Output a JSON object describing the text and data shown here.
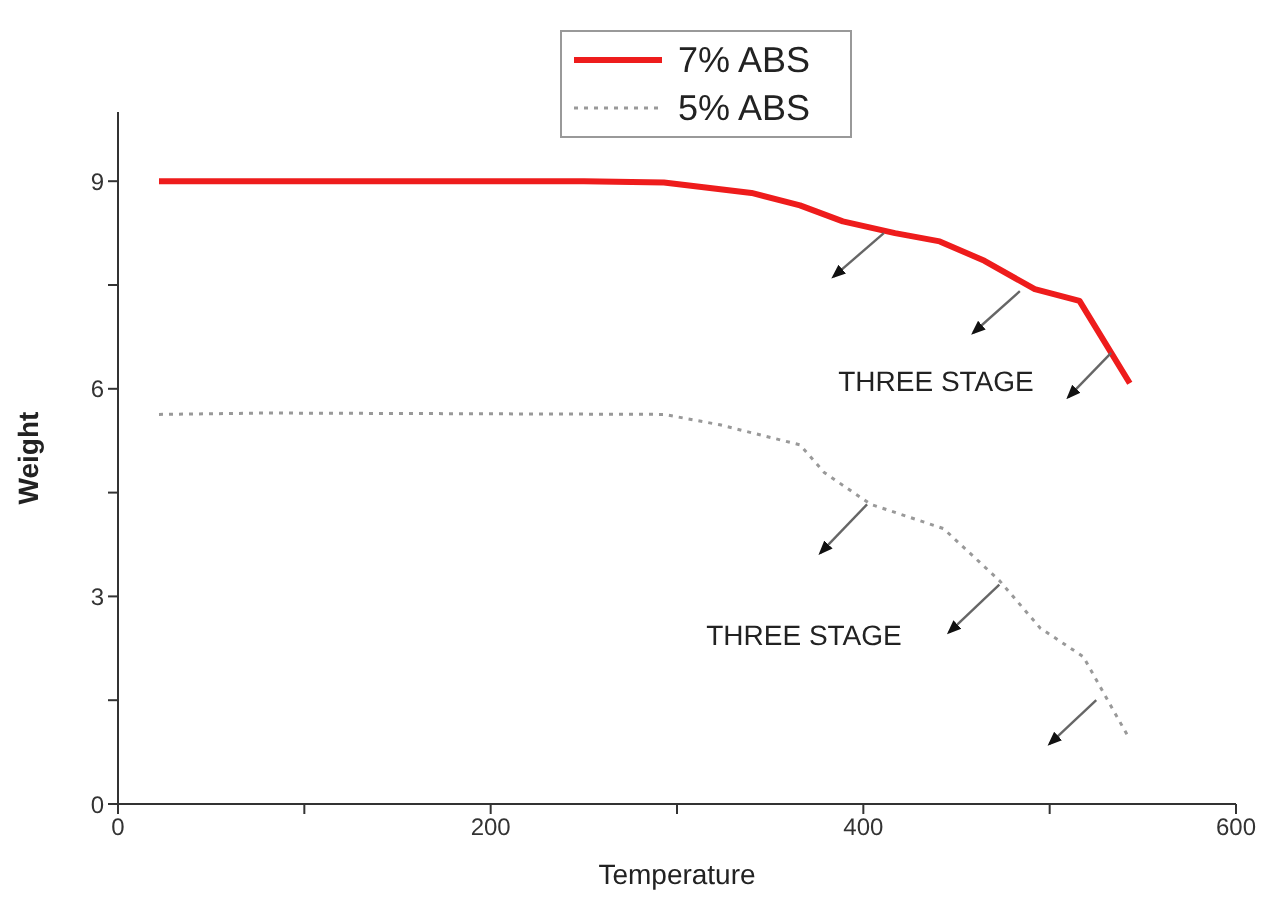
{
  "chart_data": {
    "type": "line",
    "xlabel": "Temperature",
    "ylabel": "Weight",
    "xlim": [
      0,
      600
    ],
    "xticks": [
      0,
      {
        "value": 100,
        "label": null
      },
      200,
      {
        "value": 300,
        "label": null
      },
      400,
      {
        "value": 500,
        "label": null
      },
      600
    ],
    "ylim": [
      0,
      10
    ],
    "yticks": [
      0,
      {
        "value": 1.5,
        "label": null
      },
      3,
      {
        "value": 4.5,
        "label": null
      },
      6,
      {
        "value": 7.5,
        "label": null
      },
      9
    ],
    "grid": false,
    "legend": "top",
    "marker": "none",
    "series": [
      {
        "name": "7% ABS",
        "color": "#ee1c1c",
        "line_style": "solid",
        "x": [
          22,
          250,
          293,
          340,
          366,
          389,
          417,
          441,
          465,
          492,
          516,
          543
        ],
        "values": [
          9.0,
          9.0,
          8.98,
          8.83,
          8.65,
          8.42,
          8.25,
          8.13,
          7.85,
          7.44,
          7.27,
          6.08
        ]
      },
      {
        "name": "5% ABS",
        "color": "#999999",
        "line_style": "dotted",
        "x": [
          22,
          80,
          293,
          323,
          366,
          379,
          404,
          443,
          473,
          495,
          518,
          542
        ],
        "values": [
          5.63,
          5.65,
          5.63,
          5.48,
          5.19,
          4.79,
          4.33,
          3.98,
          3.23,
          2.54,
          2.13,
          0.98
        ]
      }
    ],
    "annotations": [
      "THREE STAGE",
      "THREE STAGE"
    ]
  }
}
